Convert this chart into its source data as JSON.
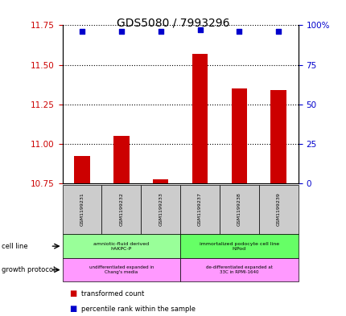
{
  "title": "GDS5080 / 7993296",
  "samples": [
    "GSM1199231",
    "GSM1199232",
    "GSM1199233",
    "GSM1199237",
    "GSM1199238",
    "GSM1199239"
  ],
  "bar_values": [
    10.925,
    11.05,
    10.775,
    11.57,
    11.35,
    11.34
  ],
  "bar_base": 10.75,
  "percentile_values": [
    96,
    96,
    96,
    97,
    96,
    96
  ],
  "percentile_scale_min": 0,
  "percentile_scale_max": 100,
  "ylim_left": [
    10.75,
    11.75
  ],
  "yticks_left": [
    10.75,
    11.0,
    11.25,
    11.5,
    11.75
  ],
  "yticks_right": [
    0,
    25,
    50,
    75,
    100
  ],
  "ytick_right_labels": [
    "0",
    "25",
    "50",
    "75",
    "100%"
  ],
  "bar_color": "#cc0000",
  "percentile_color": "#0000cc",
  "grid_color": "#000000",
  "cell_line_groups": [
    {
      "label": "amniotic-fluid derived\nhAKPC-P",
      "start": 0,
      "end": 2,
      "color": "#99ff99"
    },
    {
      "label": "immortalized podocyte cell line\nhIPod",
      "start": 3,
      "end": 5,
      "color": "#66ff66"
    }
  ],
  "growth_protocol_groups": [
    {
      "label": "undifferentiated expanded in\nChang's media",
      "start": 0,
      "end": 2,
      "color": "#ff99ff"
    },
    {
      "label": "de-differentiated expanded at\n33C in RPMI-1640",
      "start": 3,
      "end": 5,
      "color": "#ff99ff"
    }
  ],
  "legend_red_label": "transformed count",
  "legend_blue_label": "percentile rank within the sample",
  "cell_line_label": "cell line",
  "growth_protocol_label": "growth protocol",
  "bg_color": "#ffffff",
  "plot_bg_color": "#ffffff",
  "tick_label_color_left": "#cc0000",
  "tick_label_color_right": "#0000cc"
}
